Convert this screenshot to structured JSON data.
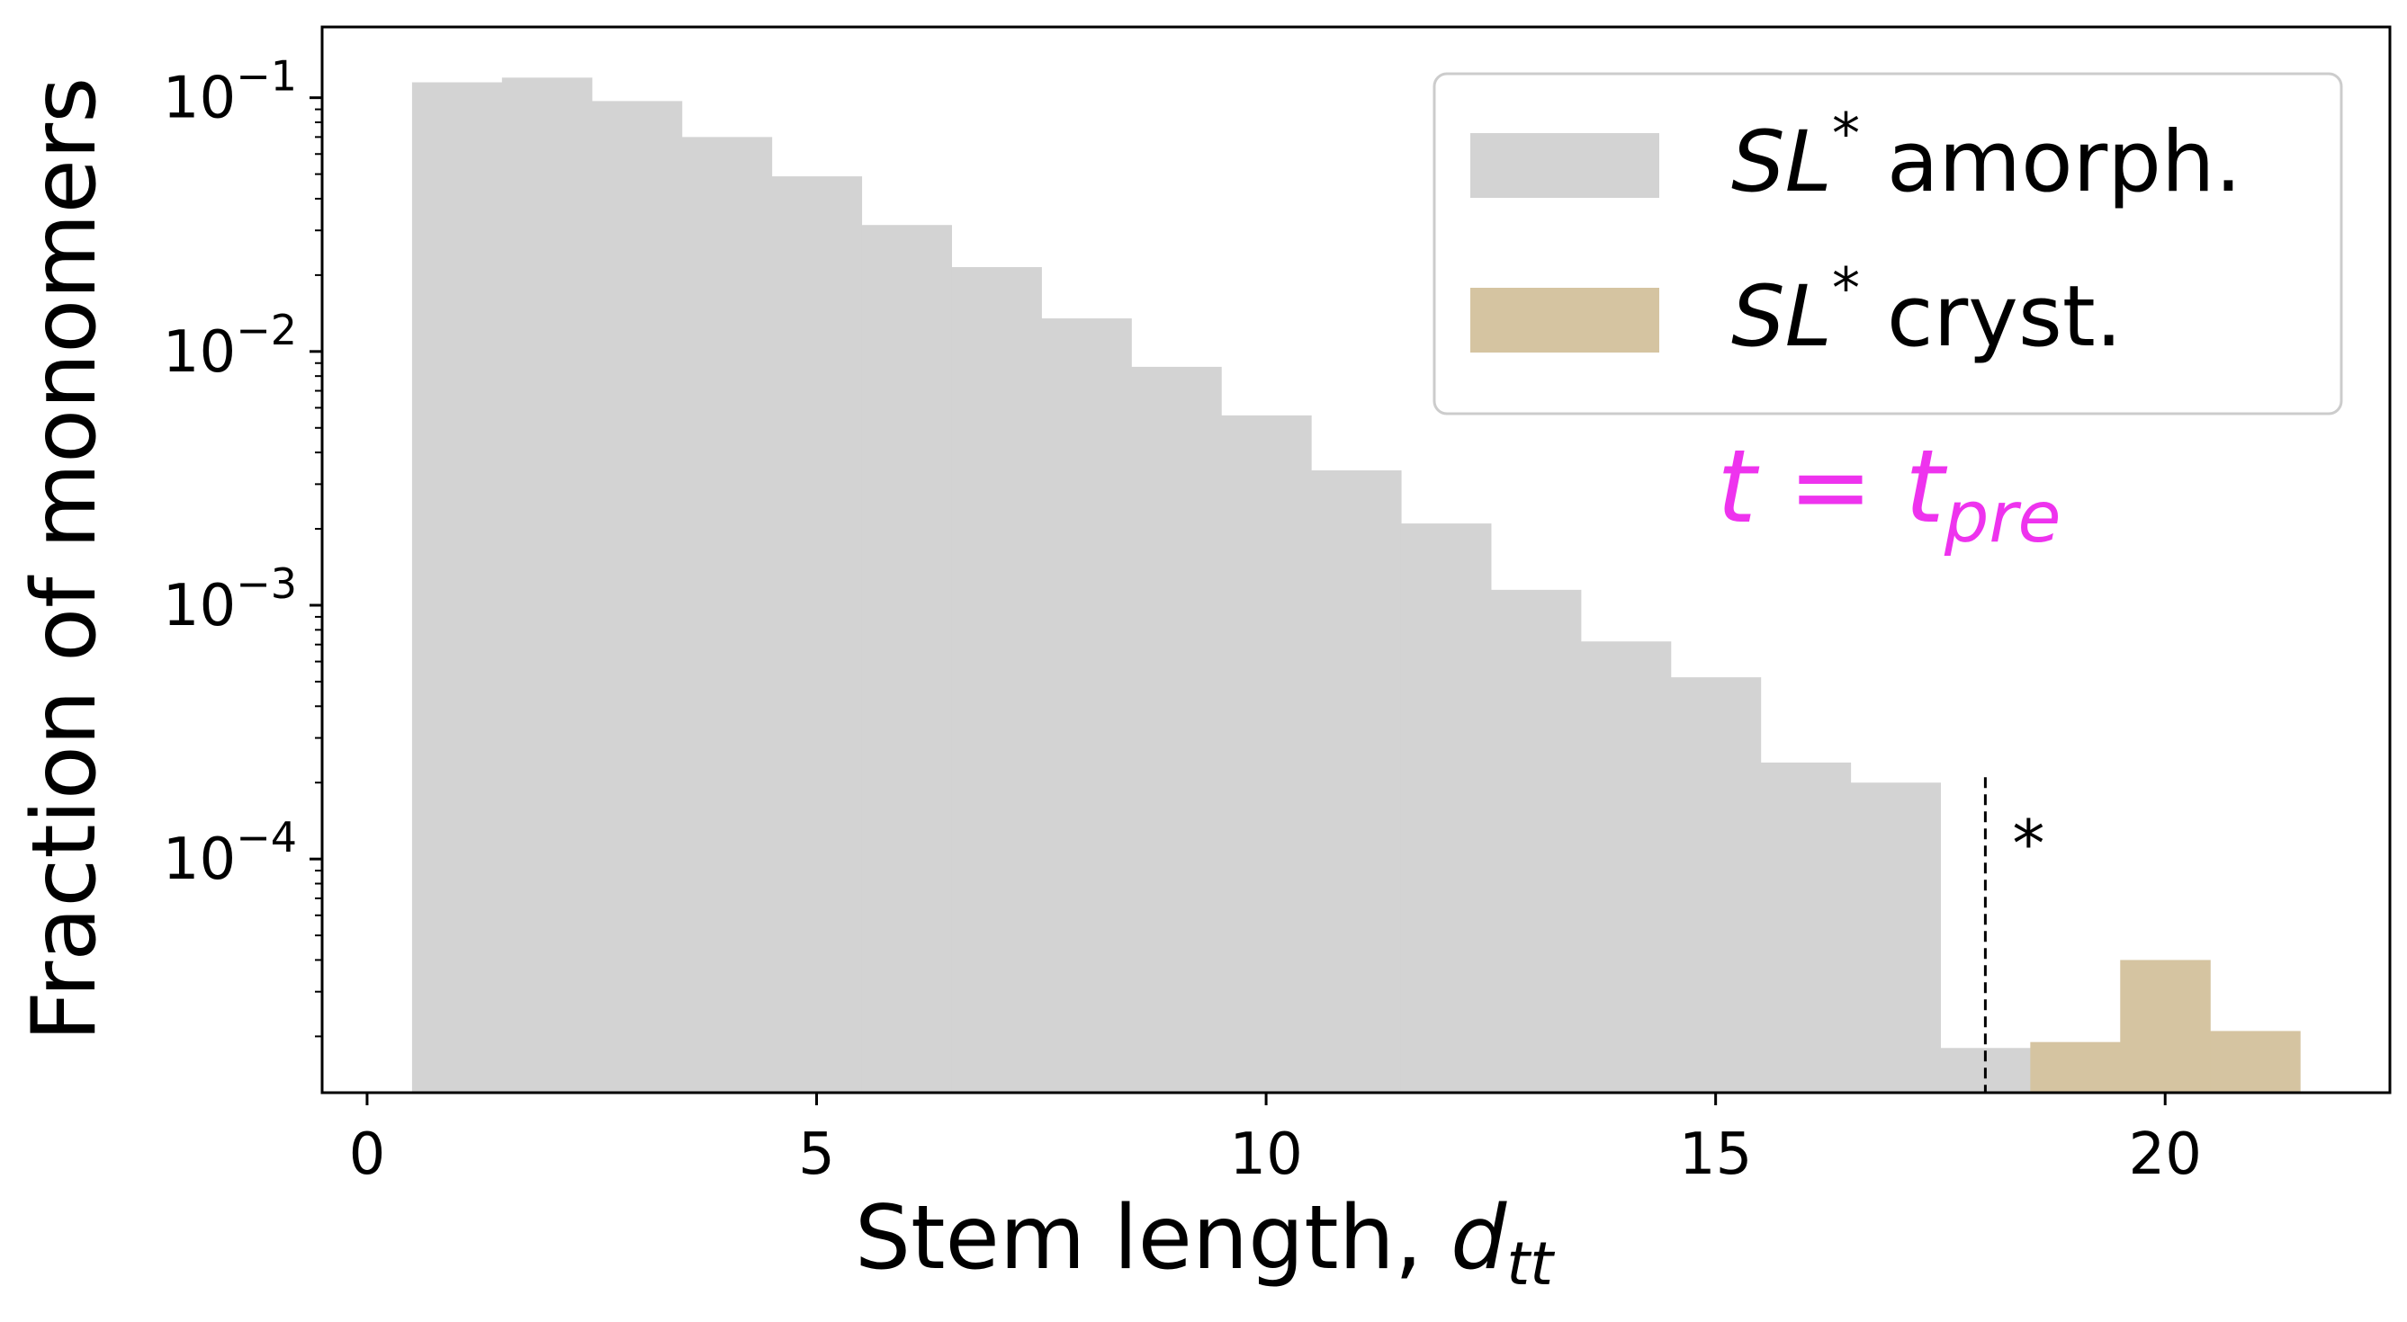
{
  "chart_data": {
    "type": "bar",
    "xlabel": "Stem length, ",
    "xlabel_math": "d",
    "xlabel_sub": "tt",
    "ylabel": "Fraction of monomers",
    "xlim": [
      -0.5,
      22.5
    ],
    "ylim": [
      1.2e-05,
      0.19
    ],
    "yscale": "log",
    "x_ticks": [
      0,
      5,
      10,
      15,
      20
    ],
    "y_ticks": [
      {
        "base": "10",
        "exp": "−1",
        "value": 0.1
      },
      {
        "base": "10",
        "exp": "−2",
        "value": 0.01
      },
      {
        "base": "10",
        "exp": "−3",
        "value": 0.001
      },
      {
        "base": "10",
        "exp": "−4",
        "value": 0.0001
      }
    ],
    "bin_width": 1,
    "series": [
      {
        "name": "SL* amorph.",
        "color": "#d3d3d3",
        "x": [
          1,
          2,
          3,
          4,
          5,
          6,
          7,
          8,
          9,
          10,
          11,
          12,
          13,
          14,
          15,
          16,
          17,
          18
        ],
        "values": [
          0.115,
          0.12,
          0.097,
          0.07,
          0.049,
          0.0315,
          0.0215,
          0.0135,
          0.0087,
          0.0056,
          0.0034,
          0.0021,
          0.00115,
          0.00072,
          0.00052,
          0.00024,
          0.0002,
          1.8e-05
        ]
      },
      {
        "name": "SL* cryst.",
        "color": "#d5c4a1",
        "x": [
          19,
          20,
          21
        ],
        "values": [
          1.9e-05,
          4e-05,
          2.1e-05
        ]
      }
    ],
    "legend": {
      "position": "top-right",
      "entries": [
        {
          "math": "SL",
          "sup": "*",
          "text": " amorph."
        },
        {
          "math": "SL",
          "sup": "*",
          "text": " cryst."
        }
      ]
    },
    "threshold": {
      "x": 18,
      "label": "*"
    },
    "annotation": {
      "t": "t",
      "eq": " = ",
      "t2": "t",
      "sub": "pre",
      "color": "#ee33ee"
    }
  }
}
